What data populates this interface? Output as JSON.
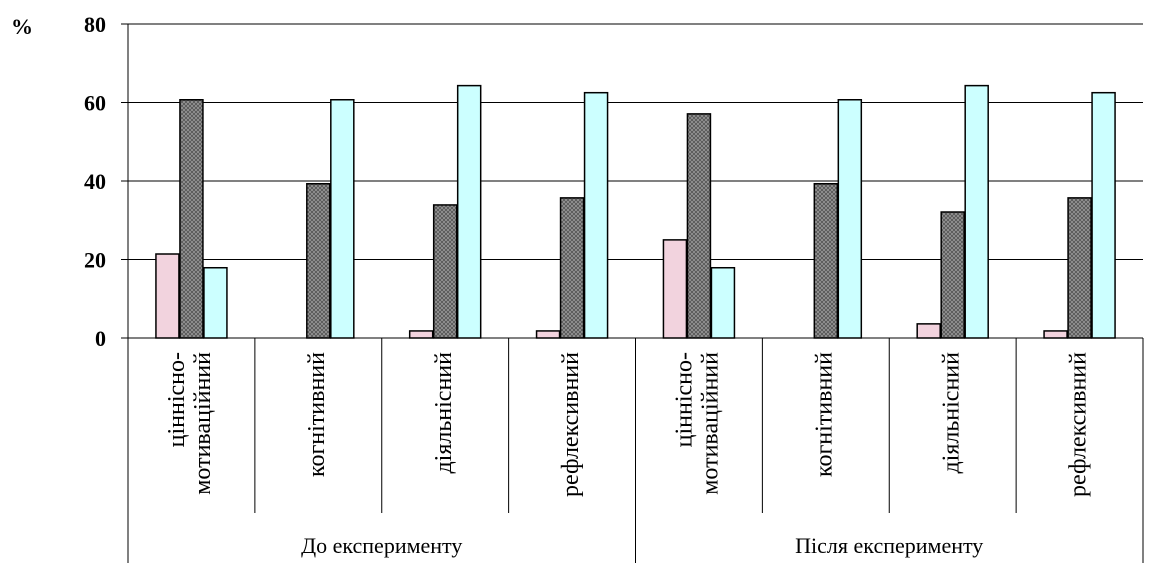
{
  "chart_data": {
    "type": "bar",
    "ylabel": "%",
    "ylim": [
      0,
      80
    ],
    "yticks": [
      0,
      20,
      40,
      60,
      80
    ],
    "grid": true,
    "groups": [
      {
        "label": "До експерименту",
        "categories": [
          "ціннісно-мотиваційний",
          "когнітивний",
          "діяльнісний",
          "рефлексивний"
        ],
        "category_lines": [
          [
            "ціннісно-",
            "мотиваційний"
          ],
          [
            "когнітивний"
          ],
          [
            "діяльнісний"
          ],
          [
            "рефлексивний"
          ]
        ]
      },
      {
        "label": "Після експерименту",
        "categories": [
          "ціннісно-мотиваційний",
          "когнітивний",
          "діяльнісний",
          "рефлексивний"
        ],
        "category_lines": [
          [
            "ціннісно-",
            "мотиваційний"
          ],
          [
            "когнітивний"
          ],
          [
            "діяльнісний"
          ],
          [
            "рефлексивний"
          ]
        ]
      }
    ],
    "series": [
      {
        "color": "#f2d3de",
        "pattern": "solid",
        "values": [
          21.4,
          0,
          1.8,
          1.8,
          25,
          0,
          3.6,
          1.8
        ]
      },
      {
        "color": "#8a8a8a",
        "pattern": "crosshatch",
        "values": [
          60.7,
          39.3,
          33.9,
          35.7,
          57.1,
          39.3,
          32.1,
          35.7
        ]
      },
      {
        "color": "#ccffff",
        "pattern": "solid",
        "values": [
          17.9,
          60.7,
          64.3,
          62.5,
          17.9,
          60.7,
          64.3,
          62.5
        ]
      }
    ]
  }
}
